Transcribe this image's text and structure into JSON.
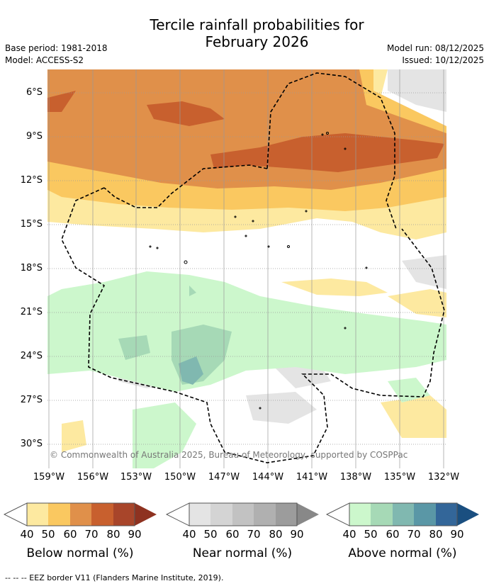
{
  "header": {
    "title_line1": "Tercile rainfall probabilities for",
    "title_line2": "February 2026",
    "base_period": "Base period: 1981-2018",
    "model": "Model: ACCESS-S2",
    "model_run": "Model run: 08/12/2025",
    "issued": "Issued: 10/12/2025"
  },
  "map": {
    "lat_ticks": [
      "6°S",
      "9°S",
      "12°S",
      "15°S",
      "18°S",
      "21°S",
      "24°S",
      "27°S",
      "30°S"
    ],
    "lon_ticks": [
      "159°W",
      "156°W",
      "153°W",
      "150°W",
      "147°W",
      "144°W",
      "141°W",
      "138°W",
      "135°W",
      "132°W"
    ],
    "copyright": "© Commonwealth of Australia 2025, Bureau of Meteorology, supported by COSPPac"
  },
  "colorbars": [
    {
      "label": "Below normal (%)",
      "ticks": [
        "40",
        "50",
        "60",
        "70",
        "80",
        "90"
      ],
      "colors": [
        "#fde9a0",
        "#fac860",
        "#e0904a",
        "#c8602e",
        "#a8452a",
        "#8e3220"
      ]
    },
    {
      "label": "Near normal (%)",
      "ticks": [
        "40",
        "50",
        "60",
        "70",
        "80",
        "90"
      ],
      "colors": [
        "#e4e4e4",
        "#d4d4d4",
        "#c2c2c2",
        "#b0b0b0",
        "#9c9c9c",
        "#888888"
      ]
    },
    {
      "label": "Above normal (%)",
      "ticks": [
        "40",
        "50",
        "60",
        "70",
        "80",
        "90"
      ],
      "colors": [
        "#ccf7cc",
        "#a6d9b6",
        "#80b8b0",
        "#5a97a6",
        "#336699",
        "#1a4f80"
      ]
    }
  ],
  "footer": {
    "eez": "--  --  -- EEZ border V11 (Flanders Marine Institute, 2019)."
  }
}
